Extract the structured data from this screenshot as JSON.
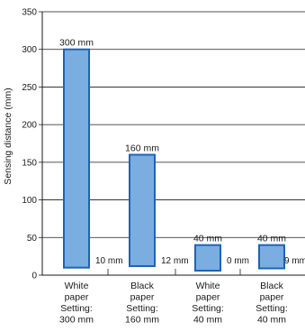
{
  "chart_data": {
    "type": "bar",
    "ylabel": "Sensing distance (mm)",
    "ylim": [
      0,
      350
    ],
    "yticks": [
      0,
      50,
      100,
      150,
      200,
      250,
      300,
      350
    ],
    "grid": true,
    "bar_color": "#7aaee0",
    "bar_edge_color": "#1f63b5",
    "categories": [
      [
        "White",
        "paper",
        "Setting:",
        "300 mm"
      ],
      [
        "Black",
        "paper",
        "Setting:",
        "160 mm"
      ],
      [
        "White",
        "paper",
        "Setting:",
        "40 mm"
      ],
      [
        "Black",
        "paper",
        "Setting:",
        "40 mm"
      ]
    ],
    "bars": [
      {
        "top": 300,
        "bottom": 10,
        "top_label": "300 mm",
        "bottom_label": "10 mm"
      },
      {
        "top": 160,
        "bottom": 12,
        "top_label": "160 mm",
        "bottom_label": "12 mm"
      },
      {
        "top": 40,
        "bottom": 0,
        "top_label": "40 mm",
        "bottom_label": "0 mm"
      },
      {
        "top": 40,
        "bottom": 9,
        "top_label": "40 mm",
        "bottom_label": "9 mm"
      }
    ]
  }
}
